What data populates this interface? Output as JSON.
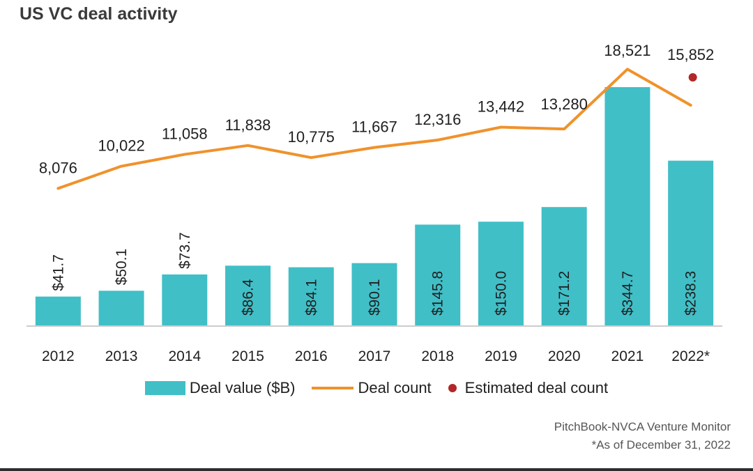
{
  "chart_data": {
    "type": "bar",
    "title": "US VC deal activity",
    "categories": [
      "2012",
      "2013",
      "2014",
      "2015",
      "2016",
      "2017",
      "2018",
      "2019",
      "2020",
      "2021",
      "2022*"
    ],
    "series": [
      {
        "name": "Deal value ($B)",
        "kind": "bar",
        "values": [
          41.7,
          50.1,
          73.7,
          86.4,
          84.1,
          90.1,
          145.8,
          150.0,
          171.2,
          344.7,
          238.3
        ],
        "labels": [
          "$41.7",
          "$50.1",
          "$73.7",
          "$86.4",
          "$84.1",
          "$90.1",
          "$145.8",
          "$150.0",
          "$171.2",
          "$344.7",
          "$238.3"
        ]
      },
      {
        "name": "Deal count",
        "kind": "line",
        "values": [
          8076,
          10022,
          11058,
          11838,
          10775,
          11667,
          12316,
          13442,
          13280,
          18521,
          15852
        ],
        "labels": [
          "8,076",
          "10,022",
          "11,058",
          "11,838",
          "10,775",
          "11,667",
          "12,316",
          "13,442",
          "13,280",
          "18,521",
          "15,852"
        ]
      },
      {
        "name": "Estimated deal count",
        "kind": "point",
        "category": "2022*",
        "value": 15852
      }
    ],
    "legend": [
      "Deal value ($B)",
      "Deal count",
      "Estimated deal count"
    ],
    "legend_position": "bottom",
    "grid": false,
    "ylim_bars": [
      0,
      400
    ],
    "ylim_line": [
      0,
      20000
    ]
  },
  "source": {
    "line1": "PitchBook-NVCA Venture Monitor",
    "line2": "*As of December 31, 2022"
  },
  "colors": {
    "bar": "#40bfc7",
    "line": "#f0922b",
    "estimate": "#b32727",
    "axis": "#cccccc",
    "text": "#1f1f1f"
  }
}
